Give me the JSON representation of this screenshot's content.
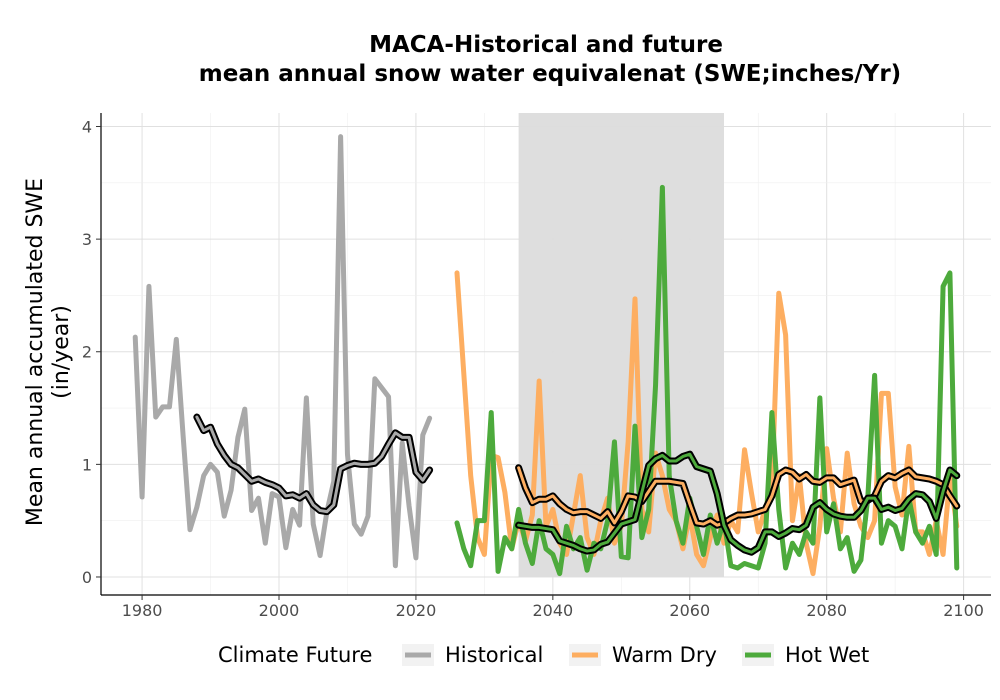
{
  "chart_data": {
    "type": "line",
    "title": "MACA-Historical and future",
    "subtitle": "mean annual snow water equivalenat (SWE;inches/Yr)",
    "xlabel": "",
    "ylabel_line1": "Mean annual accumulated SWE",
    "ylabel_line2": "(in/year)",
    "xlim": [
      1974,
      2104
    ],
    "ylim": [
      -0.16,
      4.12
    ],
    "x_ticks": [
      1980,
      2000,
      2020,
      2040,
      2060,
      2080,
      2100
    ],
    "y_ticks": [
      0,
      1,
      2,
      3,
      4
    ],
    "grid": true,
    "shaded_period": [
      2035,
      2065
    ],
    "legend": {
      "title": "Climate Future",
      "position": "bottom",
      "entries": [
        "Historical",
        "Warm Dry",
        "Hot Wet"
      ]
    },
    "colors": {
      "Historical": "#a9a9a9",
      "Warm Dry": "#fdae61",
      "Hot Wet": "#4daa3c",
      "smooth_outline": "#000000",
      "shade": "#dcdcdc",
      "grid": "#e0e0e0"
    },
    "series": [
      {
        "name": "Historical",
        "x": [
          1979,
          1980,
          1981,
          1982,
          1983,
          1984,
          1985,
          1986,
          1987,
          1988,
          1989,
          1990,
          1991,
          1992,
          1993,
          1994,
          1995,
          1996,
          1997,
          1998,
          1999,
          2000,
          2001,
          2002,
          2003,
          2004,
          2005,
          2006,
          2007,
          2008,
          2009,
          2010,
          2011,
          2012,
          2013,
          2014,
          2015,
          2016,
          2017,
          2018,
          2019,
          2020,
          2021,
          2022
        ],
        "y": [
          2.13,
          0.71,
          2.58,
          1.42,
          1.51,
          1.51,
          2.11,
          1.25,
          0.42,
          0.62,
          0.9,
          1.0,
          0.93,
          0.54,
          0.77,
          1.24,
          1.49,
          0.59,
          0.7,
          0.3,
          0.74,
          0.71,
          0.26,
          0.6,
          0.46,
          1.59,
          0.47,
          0.19,
          0.58,
          0.85,
          3.91,
          1.09,
          0.47,
          0.38,
          0.54,
          1.76,
          1.68,
          1.6,
          0.1,
          1.19,
          0.63,
          0.17,
          1.26,
          1.41
        ]
      },
      {
        "name": "Warm Dry",
        "x": [
          2026,
          2027,
          2028,
          2029,
          2030,
          2031,
          2032,
          2033,
          2034,
          2035,
          2036,
          2037,
          2038,
          2039,
          2040,
          2041,
          2042,
          2043,
          2044,
          2045,
          2046,
          2047,
          2048,
          2049,
          2050,
          2051,
          2052,
          2053,
          2054,
          2055,
          2056,
          2057,
          2058,
          2059,
          2060,
          2061,
          2062,
          2063,
          2064,
          2065,
          2066,
          2067,
          2068,
          2069,
          2070,
          2071,
          2072,
          2073,
          2074,
          2075,
          2076,
          2077,
          2078,
          2079,
          2080,
          2081,
          2082,
          2083,
          2084,
          2085,
          2086,
          2087,
          2088,
          2089,
          2090,
          2091,
          2092,
          2093,
          2094,
          2095,
          2096,
          2097,
          2098,
          2099
        ],
        "y": [
          2.7,
          1.8,
          0.9,
          0.35,
          0.2,
          1.08,
          1.06,
          0.75,
          0.25,
          0.5,
          0.32,
          0.55,
          1.74,
          0.45,
          0.6,
          0.3,
          0.2,
          0.55,
          0.9,
          0.35,
          0.2,
          0.5,
          0.7,
          0.3,
          0.45,
          1.2,
          2.47,
          0.6,
          0.4,
          1.1,
          0.9,
          0.6,
          0.5,
          0.25,
          0.55,
          0.2,
          0.1,
          0.35,
          0.55,
          0.3,
          0.5,
          0.4,
          1.13,
          0.75,
          0.4,
          0.6,
          0.8,
          2.52,
          2.15,
          0.5,
          0.9,
          0.3,
          0.03,
          0.45,
          1.14,
          0.7,
          0.4,
          1.1,
          0.65,
          0.45,
          0.35,
          0.5,
          1.63,
          1.63,
          0.8,
          0.55,
          1.16,
          0.4,
          0.4,
          0.2,
          0.5,
          0.2,
          0.9,
          0.45
        ]
      },
      {
        "name": "Hot Wet",
        "x": [
          2026,
          2027,
          2028,
          2029,
          2030,
          2031,
          2032,
          2033,
          2034,
          2035,
          2036,
          2037,
          2038,
          2039,
          2040,
          2041,
          2042,
          2043,
          2044,
          2045,
          2046,
          2047,
          2048,
          2049,
          2050,
          2051,
          2052,
          2053,
          2054,
          2055,
          2056,
          2057,
          2058,
          2059,
          2060,
          2061,
          2062,
          2063,
          2064,
          2065,
          2066,
          2067,
          2068,
          2069,
          2070,
          2071,
          2072,
          2073,
          2074,
          2075,
          2076,
          2077,
          2078,
          2079,
          2080,
          2081,
          2082,
          2083,
          2084,
          2085,
          2086,
          2087,
          2088,
          2089,
          2090,
          2091,
          2092,
          2093,
          2094,
          2095,
          2096,
          2097,
          2098,
          2099
        ],
        "y": [
          0.48,
          0.25,
          0.1,
          0.5,
          0.5,
          1.46,
          0.05,
          0.35,
          0.25,
          0.6,
          0.3,
          0.12,
          0.5,
          0.25,
          0.2,
          0.03,
          0.45,
          0.25,
          0.35,
          0.06,
          0.3,
          0.25,
          0.5,
          1.2,
          0.18,
          0.17,
          1.34,
          0.35,
          0.6,
          1.7,
          3.46,
          0.9,
          0.5,
          0.3,
          0.7,
          0.45,
          0.2,
          0.55,
          0.3,
          0.5,
          0.1,
          0.08,
          0.12,
          0.1,
          0.08,
          0.3,
          1.46,
          0.6,
          0.08,
          0.3,
          0.2,
          0.4,
          0.3,
          1.59,
          0.4,
          0.65,
          0.25,
          0.35,
          0.05,
          0.15,
          0.7,
          1.79,
          0.3,
          0.5,
          0.45,
          0.25,
          0.7,
          0.4,
          0.3,
          0.45,
          0.2,
          2.58,
          2.7,
          0.08
        ]
      }
    ],
    "smoothed": [
      {
        "name": "Historical",
        "x": [
          1988,
          1989,
          1990,
          1991,
          1992,
          1993,
          1994,
          1995,
          1996,
          1997,
          1998,
          1999,
          2000,
          2001,
          2002,
          2003,
          2004,
          2005,
          2006,
          2007,
          2008,
          2009,
          2010,
          2011,
          2012,
          2013,
          2014,
          2015,
          2016,
          2017,
          2018,
          2019,
          2020,
          2021,
          2022
        ],
        "y": [
          1.42,
          1.3,
          1.33,
          1.18,
          1.08,
          1.0,
          0.97,
          0.91,
          0.85,
          0.87,
          0.84,
          0.82,
          0.79,
          0.72,
          0.73,
          0.7,
          0.74,
          0.64,
          0.59,
          0.58,
          0.64,
          0.96,
          0.99,
          1.01,
          1.0,
          1.0,
          1.01,
          1.07,
          1.18,
          1.28,
          1.24,
          1.24,
          0.93,
          0.86,
          0.95
        ]
      },
      {
        "name": "Warm Dry",
        "x": [
          2035,
          2036,
          2037,
          2038,
          2039,
          2040,
          2041,
          2042,
          2043,
          2044,
          2045,
          2046,
          2047,
          2048,
          2049,
          2050,
          2051,
          2052,
          2053,
          2054,
          2055,
          2056,
          2057,
          2058,
          2059,
          2060,
          2061,
          2062,
          2063,
          2064,
          2065,
          2066,
          2067,
          2068,
          2069,
          2070,
          2071,
          2072,
          2073,
          2074,
          2075,
          2076,
          2077,
          2078,
          2079,
          2080,
          2081,
          2082,
          2083,
          2084,
          2085,
          2086,
          2087,
          2088,
          2089,
          2090,
          2091,
          2092,
          2093,
          2094,
          2095,
          2096,
          2097,
          2098,
          2099
        ],
        "y": [
          0.97,
          0.79,
          0.66,
          0.69,
          0.69,
          0.72,
          0.65,
          0.6,
          0.57,
          0.58,
          0.58,
          0.55,
          0.52,
          0.58,
          0.48,
          0.58,
          0.72,
          0.71,
          0.67,
          0.76,
          0.85,
          0.85,
          0.85,
          0.84,
          0.83,
          0.65,
          0.48,
          0.47,
          0.5,
          0.46,
          0.48,
          0.52,
          0.55,
          0.55,
          0.56,
          0.58,
          0.6,
          0.72,
          0.91,
          0.95,
          0.93,
          0.87,
          0.91,
          0.85,
          0.84,
          0.88,
          0.88,
          0.82,
          0.84,
          0.86,
          0.67,
          0.68,
          0.72,
          0.85,
          0.9,
          0.88,
          0.92,
          0.95,
          0.89,
          0.88,
          0.87,
          0.85,
          0.82,
          0.72,
          0.63
        ]
      },
      {
        "name": "Hot Wet",
        "x": [
          2035,
          2036,
          2037,
          2038,
          2039,
          2040,
          2041,
          2042,
          2043,
          2044,
          2045,
          2046,
          2047,
          2048,
          2049,
          2050,
          2051,
          2052,
          2053,
          2054,
          2055,
          2056,
          2057,
          2058,
          2059,
          2060,
          2061,
          2062,
          2063,
          2064,
          2065,
          2066,
          2067,
          2068,
          2069,
          2070,
          2071,
          2072,
          2073,
          2074,
          2075,
          2076,
          2077,
          2078,
          2079,
          2080,
          2081,
          2082,
          2083,
          2084,
          2085,
          2086,
          2087,
          2088,
          2089,
          2090,
          2091,
          2092,
          2093,
          2094,
          2095,
          2096,
          2097,
          2098,
          2099
        ],
        "y": [
          0.46,
          0.45,
          0.44,
          0.44,
          0.43,
          0.42,
          0.32,
          0.3,
          0.28,
          0.25,
          0.23,
          0.24,
          0.29,
          0.31,
          0.39,
          0.47,
          0.49,
          0.51,
          0.75,
          0.99,
          1.05,
          1.08,
          1.03,
          1.03,
          1.07,
          1.09,
          0.98,
          0.96,
          0.94,
          0.74,
          0.46,
          0.33,
          0.28,
          0.24,
          0.22,
          0.26,
          0.4,
          0.4,
          0.36,
          0.39,
          0.43,
          0.42,
          0.46,
          0.62,
          0.66,
          0.6,
          0.56,
          0.54,
          0.53,
          0.53,
          0.59,
          0.7,
          0.7,
          0.6,
          0.62,
          0.59,
          0.61,
          0.69,
          0.74,
          0.73,
          0.67,
          0.52,
          0.76,
          0.95,
          0.9
        ]
      }
    ]
  }
}
